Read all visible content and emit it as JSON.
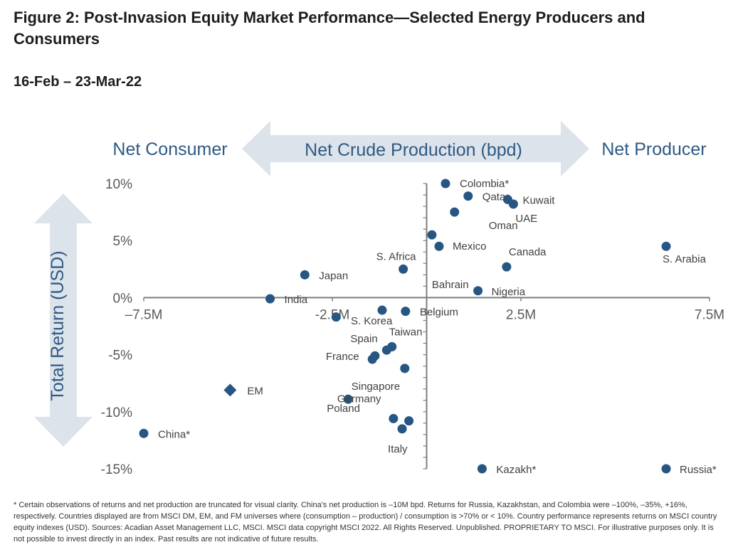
{
  "title": "Figure 2: Post-Invasion Equity Market Performance—Selected Energy Producers and Consumers",
  "subtitle": "16-Feb – 23-Mar-22",
  "footnote": "* Certain observations of returns and net production are truncated for visual clarity. China's net production is –10M bpd. Returns for Russia, Kazakhstan, and Colombia were –100%, –35%, +16%, respectively. Countries displayed are from MSCI DM, EM, and FM universes where (consumption – production) / consumption is >70% or < 10%. Country performance represents returns on MSCI country equity indexes (USD). Sources: Acadian Asset Management LLC, MSCI. MSCI data copyright MSCI 2022. All Rights Reserved. Unpublished. PROPRIETARY TO MSCI. For illustrative purposes only. It is not possible to invest directly in an index. Past results are not indicative of future results.",
  "colors": {
    "point": "#275683",
    "axis": "#7f7f7f",
    "arrow": "#dde3ea",
    "header_text": "#2f5a85",
    "label_text": "#404040",
    "tick_text": "#595959"
  },
  "chart_data": {
    "type": "scatter",
    "header": {
      "left": "Net Consumer",
      "center": "Net Crude Production (bpd)",
      "right": "Net Producer"
    },
    "ylabel": "Total Return (USD)",
    "xlim": [
      -7500000,
      7500000
    ],
    "ylim": [
      -15,
      10
    ],
    "x_ticks": [
      {
        "value": -7500000,
        "label": "–7.5M"
      },
      {
        "value": -2500000,
        "label": "-2.5M"
      },
      {
        "value": 2500000,
        "label": "2.5M"
      },
      {
        "value": 7500000,
        "label": "7.5M"
      }
    ],
    "y_ticks": [
      {
        "value": 10,
        "label": "10%"
      },
      {
        "value": 5,
        "label": "5%"
      },
      {
        "value": 0,
        "label": "0%"
      },
      {
        "value": -5,
        "label": "-5%"
      },
      {
        "value": -10,
        "label": "-10%"
      },
      {
        "value": -15,
        "label": "-15%"
      }
    ],
    "points": [
      {
        "label": "Colombia*",
        "x": 500000,
        "y": 10.0
      },
      {
        "label": "Qatar",
        "x": 1100000,
        "y": 8.9
      },
      {
        "label": "Kuwait",
        "x": 2150000,
        "y": 8.6
      },
      {
        "label": "UAE",
        "x": 2300000,
        "y": 8.2
      },
      {
        "label": "Oman",
        "x": 740000,
        "y": 7.5
      },
      {
        "label": "Bahrain",
        "x": 140000,
        "y": 5.5
      },
      {
        "label": "Mexico",
        "x": 330000,
        "y": 4.5
      },
      {
        "label": "Canada",
        "x": 2120000,
        "y": 2.7
      },
      {
        "label": "S. Arabia",
        "x": 6350000,
        "y": 4.5
      },
      {
        "label": "S. Africa",
        "x": -620000,
        "y": 2.5
      },
      {
        "label": "Japan",
        "x": -3230000,
        "y": 2.0
      },
      {
        "label": "Nigeria",
        "x": 1360000,
        "y": 0.6
      },
      {
        "label": "India",
        "x": -4150000,
        "y": -0.1
      },
      {
        "label": "S. Korea",
        "x": -1180000,
        "y": -1.1
      },
      {
        "label": "Belgium",
        "x": -560000,
        "y": -1.2
      },
      {
        "label": "",
        "x": -2400000,
        "y": -1.7
      },
      {
        "label": "Taiwan",
        "x": -920000,
        "y": -4.3
      },
      {
        "label": "Spain",
        "x": -1060000,
        "y": -4.6
      },
      {
        "label": "France",
        "x": -1370000,
        "y": -5.1
      },
      {
        "label": "",
        "x": -1440000,
        "y": -5.4
      },
      {
        "label": "Singapore",
        "x": -580000,
        "y": -6.2
      },
      {
        "label": "Poland",
        "x": -2080000,
        "y": -8.9
      },
      {
        "label": "Germany",
        "x": -880000,
        "y": -10.6
      },
      {
        "label": "",
        "x": -470000,
        "y": -10.8
      },
      {
        "label": "Italy",
        "x": -650000,
        "y": -11.5
      },
      {
        "label": "China*",
        "x": -7500000,
        "y": -11.9
      },
      {
        "label": "Kazakh*",
        "x": 1470000,
        "y": -15.0
      },
      {
        "label": "Russia*",
        "x": 6350000,
        "y": -15.0
      }
    ],
    "highlight_points": [
      {
        "label": "EM",
        "x": -5210000,
        "y": -8.1,
        "marker": "diamond"
      }
    ]
  }
}
